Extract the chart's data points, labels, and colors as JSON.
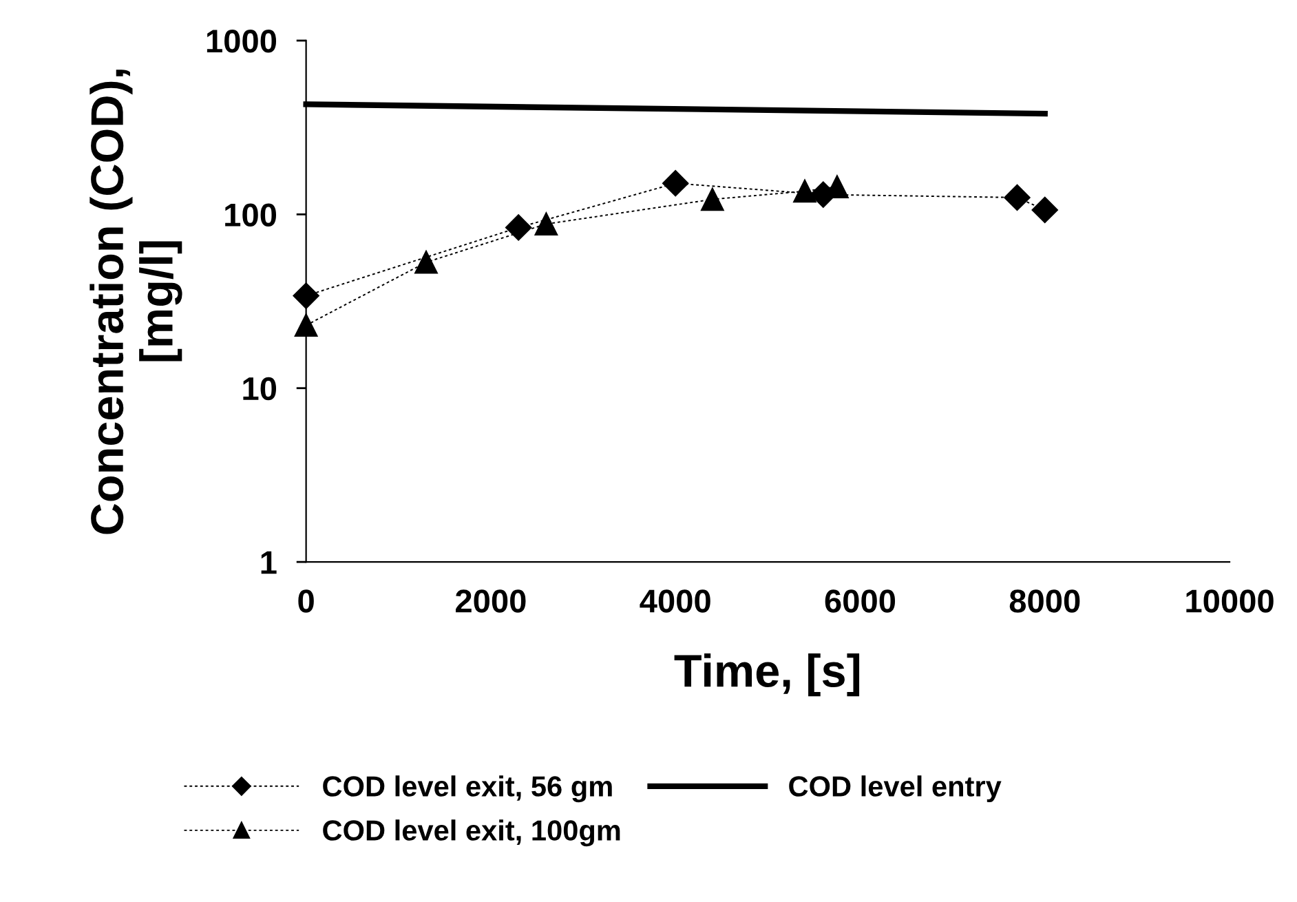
{
  "chart_data": {
    "type": "line",
    "xlabel": "Time, [s]",
    "ylabel": "Concentration (COD),\n[mg/l]",
    "log": "y",
    "xlim": [
      0,
      10000
    ],
    "xticks": [
      0,
      2000,
      4000,
      6000,
      8000,
      10000
    ],
    "ylim": [
      1,
      1000
    ],
    "yticks": [
      1,
      10,
      100,
      1000
    ],
    "grid": false,
    "legend": "bottom",
    "series": [
      {
        "name": "COD level exit, 56 gm",
        "color": "#000000",
        "marker": "diamond",
        "line_style": "dotted",
        "x": [
          0,
          2300,
          4000,
          5600,
          7700,
          8000
        ],
        "values": [
          34,
          84,
          151,
          130,
          125,
          106
        ]
      },
      {
        "name": "COD level entry",
        "color": "#000000",
        "marker": "none",
        "line_style": "solid",
        "x": [
          0,
          8000
        ],
        "values": [
          430,
          380
        ]
      },
      {
        "name": "COD level exit, 100gm",
        "color": "#000000",
        "marker": "triangle",
        "line_style": "dotted",
        "x": [
          0,
          1300,
          2600,
          4400,
          5400,
          5750
        ],
        "values": [
          23,
          53,
          88,
          122,
          136,
          144
        ]
      }
    ]
  }
}
